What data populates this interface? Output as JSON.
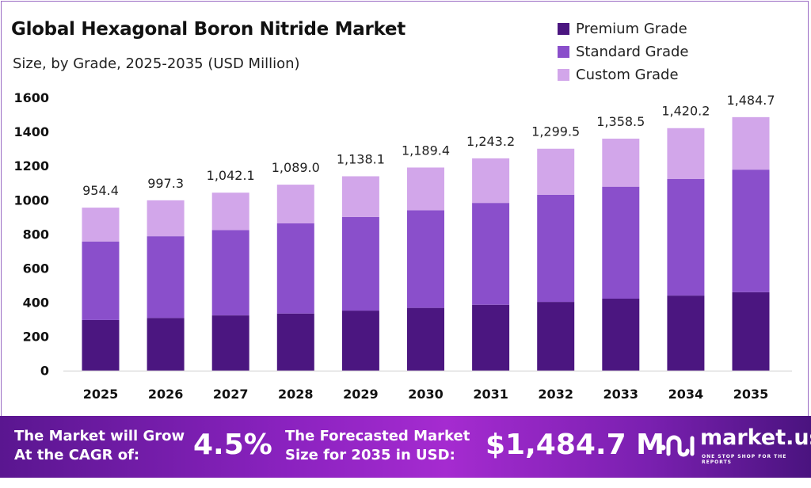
{
  "chart_data": {
    "type": "bar",
    "stacked": true,
    "title": "Global Hexagonal Boron Nitride Market",
    "subtitle": "Size, by Grade, 2025-2035 (USD Million)",
    "categories": [
      "2025",
      "2026",
      "2027",
      "2028",
      "2029",
      "2030",
      "2031",
      "2032",
      "2033",
      "2034",
      "2035"
    ],
    "series": [
      {
        "name": "Premium Grade",
        "color": "#4b1680",
        "values": [
          296,
          308,
          323,
          334,
          351,
          367,
          385,
          402,
          421,
          439,
          459
        ]
      },
      {
        "name": "Standard Grade",
        "color": "#8a4fcb",
        "values": [
          460,
          479,
          500,
          528,
          549,
          572,
          597,
          628,
          656,
          684,
          718
        ]
      },
      {
        "name": "Custom Grade",
        "color": "#d2a6ea",
        "values": [
          198.4,
          210.3,
          219.1,
          227.0,
          238.1,
          250.4,
          261.2,
          269.5,
          281.5,
          297.2,
          307.7
        ]
      }
    ],
    "totals": [
      "954.4",
      "997.3",
      "1,042.1",
      "1,089.0",
      "1,138.1",
      "1,189.4",
      "1,243.2",
      "1,299.5",
      "1,358.5",
      "1,420.2",
      "1,484.7"
    ],
    "yticks": [
      "0",
      "200",
      "400",
      "600",
      "800",
      "1000",
      "1200",
      "1400",
      "1600"
    ],
    "ylim": [
      0,
      1600
    ],
    "grid": false,
    "legend_position": "top-right"
  },
  "banner": {
    "cagr_label": "The Market will Grow At the CAGR of:",
    "cagr_value": "4.5%",
    "forecast_label": "The Forecasted Market Size for 2035 in USD:",
    "forecast_value": "$1,484.7 M",
    "logo_text": "market.us",
    "logo_tagline": "ONE STOP SHOP FOR THE REPORTS"
  }
}
